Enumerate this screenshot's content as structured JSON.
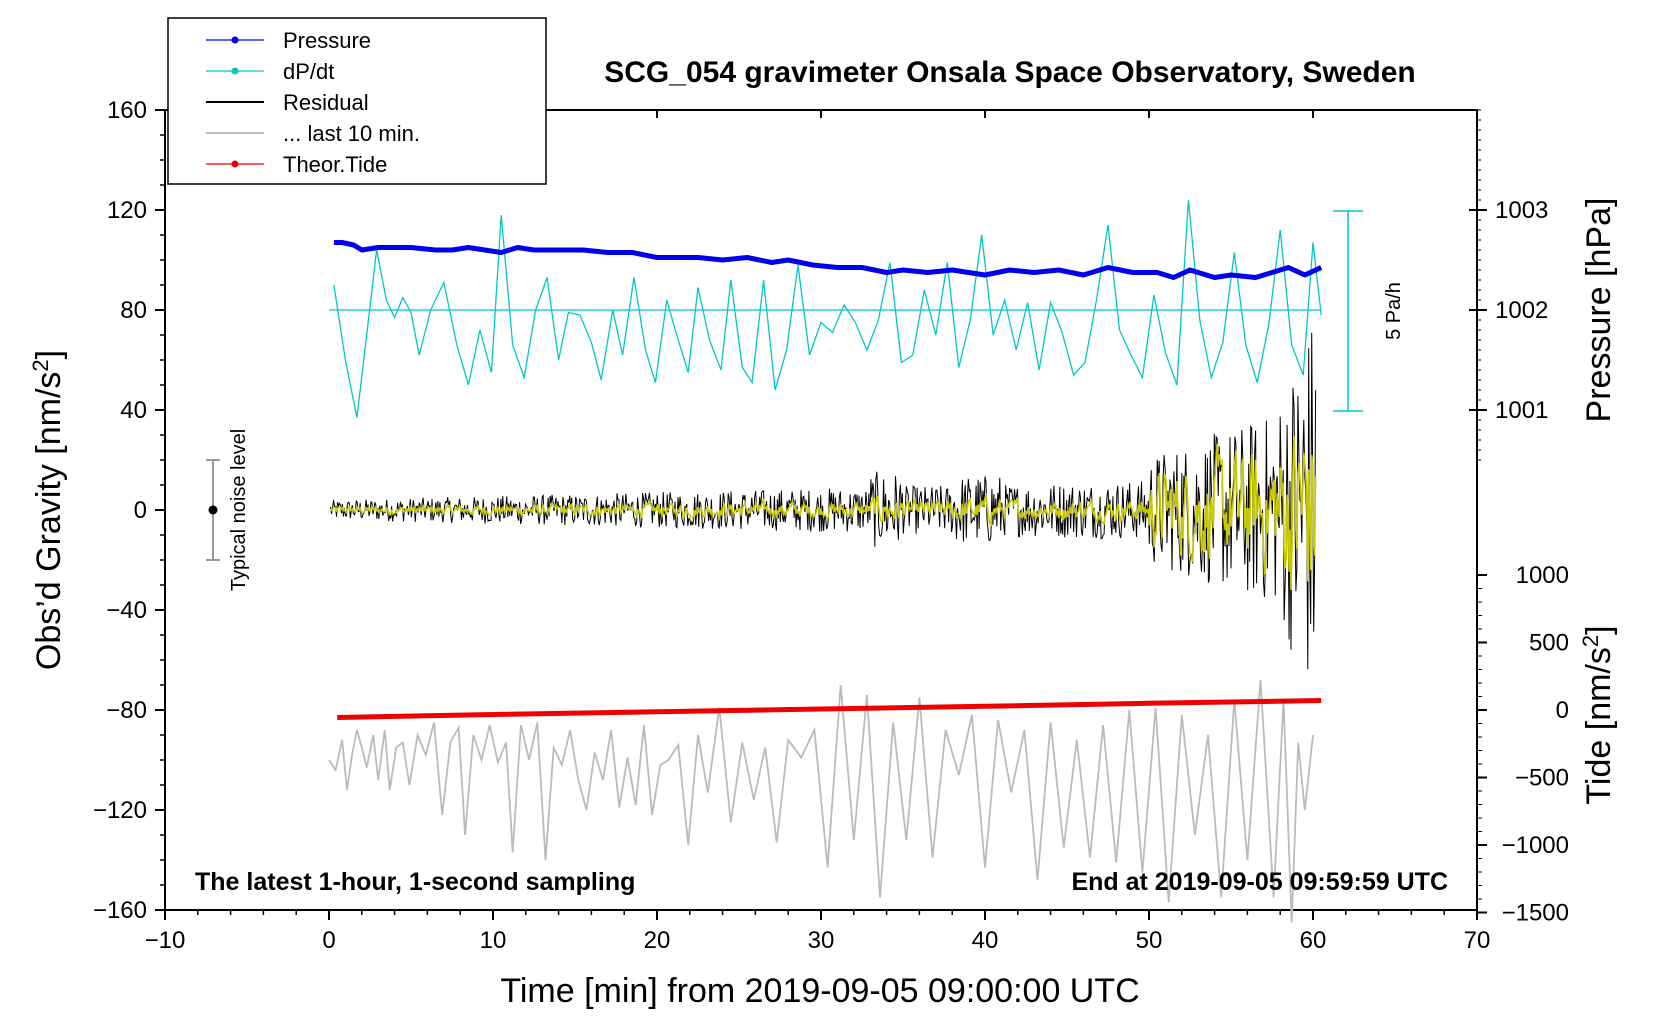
{
  "chart_data": {
    "type": "line",
    "title": "SCG_054 gravimeter Onsala Space Observatory, Sweden",
    "xlabel": "Time [min] from 2019-09-05 09:00:00 UTC",
    "ylabel": "Obs'd Gravity [nm/s2]",
    "ylabel_main": "Obs’d Gravity [nm/s",
    "ylabel_sup": "2",
    "ylabel_end": "]",
    "y2label": "Pressure [hPa]",
    "y3label": "Tide [nm/s2]",
    "y3label_main": "Tide [nm/s",
    "y3label_sup": "2",
    "y3label_end": "]",
    "xlim": [
      -10,
      70
    ],
    "ylim": [
      -160,
      160
    ],
    "x_ticks": [
      "−10",
      "0",
      "10",
      "20",
      "30",
      "40",
      "50",
      "60",
      "70"
    ],
    "y_ticks": [
      "160",
      "120",
      "80",
      "40",
      "0",
      "−40",
      "−80",
      "−120",
      "−160"
    ],
    "pressure_ticks": [
      "1003",
      "1002",
      "1001"
    ],
    "tide_ticks": [
      "1000",
      "500",
      "0",
      "−500",
      "−1000",
      "−1500"
    ],
    "legend": [
      {
        "label": "Pressure",
        "color": "#0000ee"
      },
      {
        "label": "dP/dt",
        "color": "#00c8c8"
      },
      {
        "label": "Residual",
        "color": "#000000"
      },
      {
        "label": "... last 10 min.",
        "color": "#bbbbbb"
      },
      {
        "label": "Theor.Tide",
        "color": "#ee0000"
      }
    ],
    "scale_bar_label": "5 Pa/h",
    "noise_label": "Typical noise level",
    "note_left": "The latest 1-hour, 1-second sampling",
    "note_right": "End at 2019-09-05 09:59:59 UTC",
    "series": [
      {
        "name": "Pressure",
        "color": "#0000ee",
        "x": [
          0.3,
          0.8,
          1.5,
          2.0,
          3.0,
          5.0,
          6.5,
          7.5,
          8.5,
          9.5,
          10.5,
          11.5,
          12.5,
          14.0,
          15.5,
          17.0,
          18.5,
          20.0,
          21.5,
          22.5,
          24.0,
          25.5,
          27.0,
          28.0,
          29.5,
          31.0,
          32.5,
          34.0,
          35.0,
          36.5,
          38.0,
          39.0,
          40.0,
          41.5,
          43.0,
          44.5,
          46.0,
          47.5,
          49.0,
          50.5,
          51.5,
          52.5,
          54.0,
          55.0,
          56.5,
          57.5,
          58.5,
          59.5,
          60.5
        ],
        "y": [
          107,
          107,
          106,
          104,
          105,
          105,
          104,
          104,
          105,
          104,
          103,
          105,
          104,
          104,
          104,
          103,
          103,
          101,
          101,
          101,
          100,
          101,
          99,
          100,
          98,
          97,
          97,
          95,
          96,
          95,
          96,
          95,
          94,
          96,
          95,
          96,
          94,
          97,
          95,
          95,
          93,
          96,
          93,
          94,
          93,
          95,
          97,
          94,
          97
        ]
      },
      {
        "name": "dP/dt",
        "color": "#00c8c8",
        "x": [
          0.3,
          1.0,
          1.7,
          2.3,
          2.9,
          3.5,
          4.0,
          4.5,
          5.0,
          5.5,
          6.2,
          7.0,
          7.8,
          8.5,
          9.2,
          9.9,
          10.5,
          11.2,
          11.9,
          12.6,
          13.3,
          14.0,
          14.6,
          15.3,
          16.0,
          16.6,
          17.3,
          17.9,
          18.6,
          19.3,
          19.9,
          20.6,
          21.2,
          21.9,
          22.5,
          23.2,
          23.9,
          24.5,
          25.2,
          25.8,
          26.5,
          27.2,
          27.9,
          28.6,
          29.3,
          30.0,
          30.7,
          31.4,
          32.1,
          32.8,
          33.5,
          34.2,
          34.9,
          35.6,
          36.3,
          37.0,
          37.7,
          38.4,
          39.1,
          39.8,
          40.5,
          41.2,
          41.9,
          42.6,
          43.3,
          44.0,
          44.7,
          45.4,
          46.1,
          46.8,
          47.5,
          48.2,
          48.9,
          49.6,
          50.3,
          51.0,
          51.7,
          52.4,
          53.1,
          53.8,
          54.5,
          55.2,
          55.9,
          56.6,
          57.3,
          58.0,
          58.7,
          59.4,
          60.0,
          60.5
        ],
        "y": [
          90,
          60,
          37,
          70,
          104,
          84,
          77,
          85,
          79,
          62,
          80,
          91,
          66,
          50,
          72,
          55,
          118,
          66,
          53,
          80,
          93,
          60,
          79,
          78,
          67,
          52,
          80,
          62,
          93,
          64,
          51,
          84,
          70,
          55,
          89,
          68,
          56,
          92,
          57,
          51,
          92,
          48,
          64,
          98,
          62,
          75,
          71,
          82,
          75,
          64,
          76,
          99,
          59,
          62,
          88,
          70,
          99,
          57,
          76,
          110,
          70,
          84,
          64,
          83,
          56,
          83,
          71,
          54,
          59,
          84,
          114,
          72,
          62,
          53,
          86,
          63,
          50,
          124,
          76,
          53,
          67,
          103,
          66,
          51,
          74,
          112,
          66,
          54,
          107,
          78
        ]
      },
      {
        "name": "Residual",
        "color": "#000000",
        "x_range": [
          0.1,
          60.2
        ]
      },
      {
        "name": "... last 10 min.",
        "color": "#bbbbbb",
        "x": [
          0.0,
          0.4,
          0.8,
          1.1,
          1.4,
          1.7,
          2.0,
          2.3,
          2.7,
          3.0,
          3.4,
          3.7,
          4.1,
          4.5,
          4.9,
          5.4,
          5.9,
          6.4,
          6.9,
          7.4,
          7.9,
          8.3,
          8.8,
          9.3,
          9.8,
          10.3,
          10.8,
          11.2,
          11.7,
          12.2,
          12.7,
          13.2,
          13.7,
          14.2,
          14.7,
          15.2,
          15.7,
          16.2,
          16.7,
          17.2,
          17.7,
          18.2,
          18.7,
          19.2,
          19.7,
          20.2,
          20.7,
          21.3,
          21.9,
          22.5,
          23.1,
          23.8,
          24.5,
          25.2,
          25.9,
          26.6,
          27.3,
          28.0,
          28.8,
          29.6,
          30.4,
          31.2,
          32.0,
          32.8,
          33.6,
          34.4,
          35.2,
          36.0,
          36.8,
          37.6,
          38.4,
          39.2,
          40.0,
          40.8,
          41.6,
          42.4,
          43.2,
          44.0,
          44.8,
          45.6,
          46.4,
          47.2,
          48.0,
          48.8,
          49.6,
          50.4,
          51.2,
          52.0,
          52.8,
          53.6,
          54.4,
          55.2,
          56.0,
          56.8,
          57.6,
          58.2,
          58.7,
          59.1,
          59.5,
          60.0
        ],
        "y": [
          -100,
          -104,
          -92,
          -112,
          -98,
          -88,
          -95,
          -103,
          -90,
          -108,
          -88,
          -112,
          -95,
          -93,
          -110,
          -90,
          -98,
          -85,
          -122,
          -93,
          -87,
          -130,
          -90,
          -100,
          -86,
          -101,
          -93,
          -137,
          -86,
          -100,
          -85,
          -140,
          -95,
          -102,
          -88,
          -108,
          -120,
          -97,
          -108,
          -88,
          -119,
          -99,
          -118,
          -86,
          -122,
          -102,
          -100,
          -94,
          -134,
          -90,
          -113,
          -79,
          -125,
          -93,
          -116,
          -95,
          -133,
          -92,
          -99,
          -88,
          -143,
          -70,
          -132,
          -74,
          -155,
          -85,
          -132,
          -75,
          -139,
          -88,
          -106,
          -82,
          -143,
          -84,
          -113,
          -88,
          -148,
          -85,
          -135,
          -92,
          -139,
          -86,
          -141,
          -80,
          -145,
          -79,
          -157,
          -82,
          -130,
          -90,
          -155,
          -76,
          -140,
          -68,
          -155,
          -76,
          -165,
          -93,
          -120,
          -90
        ]
      },
      {
        "name": "Theor.Tide",
        "color": "#ee0000",
        "x": [
          0.5,
          10,
          20,
          30,
          40,
          50,
          60.5
        ],
        "y": [
          -83,
          -81.8,
          -80.7,
          -79.6,
          -78.5,
          -77.3,
          -76.2
        ]
      }
    ]
  }
}
